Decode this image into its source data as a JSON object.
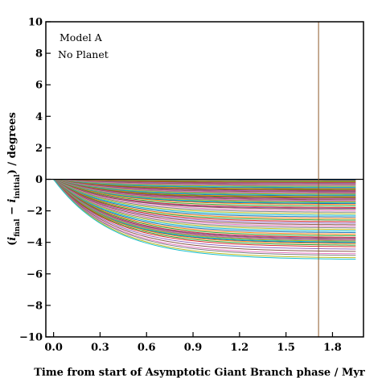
{
  "chart_data": {
    "type": "line",
    "title": "",
    "xlabel": "Time from start of Asymptotic Giant Branch phase / Myr",
    "ylabel": {
      "prefix": "(",
      "i1": "i",
      "sub1": "final",
      "minus": " − ",
      "i2": "i",
      "sub2": "initial",
      "suffix": ") / degrees"
    },
    "xlim": [
      -0.05,
      2.0
    ],
    "ylim": [
      -10,
      10
    ],
    "xticks": [
      {
        "value": 0.0,
        "label": "0.0"
      },
      {
        "value": 0.3,
        "label": "0.3"
      },
      {
        "value": 0.6,
        "label": "0.6"
      },
      {
        "value": 0.9,
        "label": "0.9"
      },
      {
        "value": 1.2,
        "label": "1.2"
      },
      {
        "value": 1.5,
        "label": "1.5"
      },
      {
        "value": 1.8,
        "label": "1.8"
      }
    ],
    "yticks": [
      {
        "value": 10,
        "label": "10"
      },
      {
        "value": 8,
        "label": "8"
      },
      {
        "value": 6,
        "label": "6"
      },
      {
        "value": 4,
        "label": "4"
      },
      {
        "value": 2,
        "label": "2"
      },
      {
        "value": 0,
        "label": "0"
      },
      {
        "value": -2,
        "label": "−2"
      },
      {
        "value": -4,
        "label": "−4"
      },
      {
        "value": -6,
        "label": "−6"
      },
      {
        "value": -8,
        "label": "−8"
      },
      {
        "value": -10,
        "label": "−10"
      }
    ],
    "zero_line": 0,
    "vertical_line": {
      "x": 1.71,
      "color": "#8c5a2b"
    },
    "annotations": [
      "Model A",
      "No Planet"
    ],
    "curves": {
      "x_start": 0.0,
      "x_end": 1.95,
      "timescale": 0.38,
      "final_values": [
        -0.05,
        -0.1,
        -0.15,
        -0.2,
        -0.25,
        -0.3,
        -0.35,
        -0.4,
        -0.45,
        -0.5,
        -0.55,
        -0.6,
        -0.65,
        -0.7,
        -0.75,
        -0.8,
        -0.85,
        -0.9,
        -0.95,
        -1.0,
        -1.05,
        -1.1,
        -1.15,
        -1.2,
        -1.25,
        -1.3,
        -1.35,
        -1.4,
        -1.45,
        -1.5,
        -1.55,
        -1.6,
        -1.7,
        -1.8,
        -1.85,
        -1.9,
        -2.0,
        -2.1,
        -2.2,
        -2.3,
        -2.4,
        -2.5,
        -2.6,
        -2.7,
        -2.8,
        -2.9,
        -3.0,
        -3.1,
        -3.2,
        -3.3,
        -3.4,
        -3.5,
        -3.6,
        -3.7,
        -3.75,
        -3.8,
        -3.85,
        -3.9,
        -3.95,
        -4.0,
        -4.05,
        -4.1,
        -4.2,
        -4.3,
        -4.45,
        -4.6,
        -4.75,
        -4.85,
        -5.0,
        -5.1
      ],
      "colors": [
        "#1f77b4",
        "#ff7f0e",
        "#2ca02c",
        "#d62728",
        "#9467bd",
        "#8c564b",
        "#e377c2",
        "#7f7f7f",
        "#bcbd22",
        "#17becf"
      ]
    }
  }
}
